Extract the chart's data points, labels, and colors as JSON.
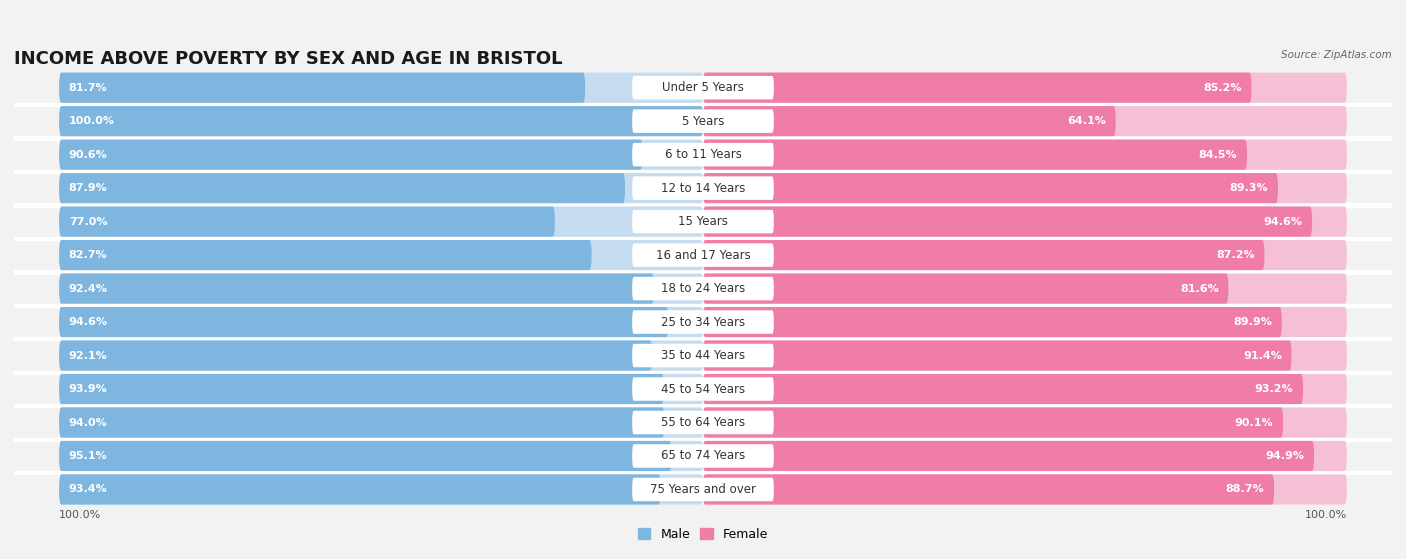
{
  "title": "INCOME ABOVE POVERTY BY SEX AND AGE IN BRISTOL",
  "source": "Source: ZipAtlas.com",
  "categories": [
    "Under 5 Years",
    "5 Years",
    "6 to 11 Years",
    "12 to 14 Years",
    "15 Years",
    "16 and 17 Years",
    "18 to 24 Years",
    "25 to 34 Years",
    "35 to 44 Years",
    "45 to 54 Years",
    "55 to 64 Years",
    "65 to 74 Years",
    "75 Years and over"
  ],
  "male_values": [
    81.7,
    100.0,
    90.6,
    87.9,
    77.0,
    82.7,
    92.4,
    94.6,
    92.1,
    93.9,
    94.0,
    95.1,
    93.4
  ],
  "female_values": [
    85.2,
    64.1,
    84.5,
    89.3,
    94.6,
    87.2,
    81.6,
    89.9,
    91.4,
    93.2,
    90.1,
    94.9,
    88.7
  ],
  "male_color": "#7eb6e0",
  "male_color_dark": "#5a9fd4",
  "male_color_light": "#c5dcf0",
  "female_color": "#f07ca8",
  "female_color_light": "#f5c0d5",
  "background_color": "#f2f2f2",
  "row_separator_color": "#ffffff",
  "title_fontsize": 13,
  "label_fontsize": 8.5,
  "value_fontsize": 8.0,
  "source_fontsize": 7.5,
  "max_val": 100.0
}
